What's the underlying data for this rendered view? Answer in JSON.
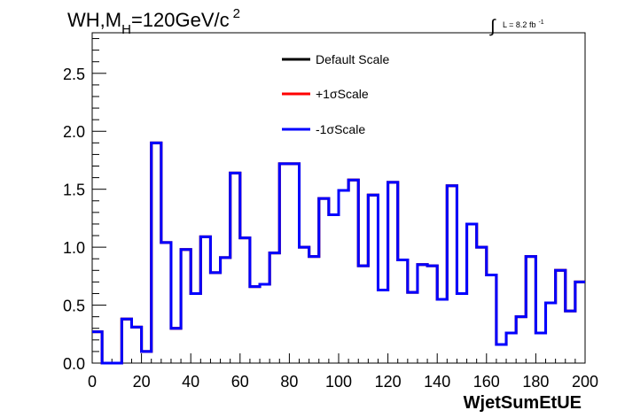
{
  "chart_data": {
    "type": "line",
    "title_main": "WH,M",
    "title_sub": "H",
    "title_rest": "=120GeV/c",
    "title_sup": "2",
    "lumi_prefix": "L = 8.2 fb",
    "lumi_sup": "-1",
    "xlabel": "WjetSumEtUE",
    "ylabel": "",
    "xlim": [
      0,
      200
    ],
    "ylim": [
      0,
      2.85
    ],
    "x_ticks": [
      0,
      20,
      40,
      60,
      80,
      100,
      120,
      140,
      160,
      180,
      200
    ],
    "x_tick_labels": [
      "0",
      "20",
      "40",
      "60",
      "80",
      "100",
      "120",
      "140",
      "160",
      "180",
      "200"
    ],
    "y_ticks": [
      0,
      0.5,
      1.0,
      1.5,
      2.0,
      2.5
    ],
    "y_tick_labels": [
      "0.0",
      "0.5",
      "1.0",
      "1.5",
      "2.0",
      "2.5"
    ],
    "grid": false,
    "legend_position": "top-center",
    "bin_edges": [
      0,
      4,
      8,
      12,
      16,
      20,
      24,
      28,
      32,
      36,
      40,
      44,
      48,
      52,
      56,
      60,
      64,
      68,
      72,
      76,
      80,
      84,
      88,
      92,
      96,
      100,
      104,
      108,
      112,
      116,
      120,
      124,
      128,
      132,
      136,
      140,
      144,
      148,
      152,
      156,
      160,
      164,
      168,
      172,
      176,
      180,
      184,
      188,
      192,
      196,
      200
    ],
    "series": [
      {
        "name": "Default Scale",
        "color": "#000000",
        "values": [
          0.27,
          0.0,
          0.0,
          0.38,
          0.31,
          0.1,
          1.9,
          1.04,
          0.3,
          0.98,
          0.6,
          1.09,
          0.78,
          0.91,
          1.64,
          1.08,
          0.66,
          0.68,
          0.95,
          1.72,
          1.72,
          1.0,
          0.92,
          1.42,
          1.28,
          1.49,
          1.58,
          0.84,
          1.45,
          0.63,
          1.56,
          0.89,
          0.61,
          0.85,
          0.84,
          0.55,
          1.53,
          0.6,
          1.2,
          1.0,
          0.76,
          0.16,
          0.26,
          0.4,
          0.92,
          0.26,
          0.52,
          0.8,
          0.45,
          0.7
        ]
      },
      {
        "name": "+1σScale",
        "color": "#ff0000",
        "values": [
          0.27,
          0.0,
          0.0,
          0.38,
          0.31,
          0.1,
          1.9,
          1.04,
          0.3,
          0.98,
          0.6,
          1.09,
          0.78,
          0.91,
          1.64,
          1.08,
          0.66,
          0.68,
          0.95,
          1.72,
          1.72,
          1.0,
          0.92,
          1.42,
          1.28,
          1.49,
          1.58,
          0.84,
          1.45,
          0.63,
          1.56,
          0.89,
          0.61,
          0.85,
          0.84,
          0.55,
          1.53,
          0.6,
          1.2,
          1.0,
          0.76,
          0.16,
          0.26,
          0.4,
          0.92,
          0.26,
          0.52,
          0.8,
          0.45,
          0.7
        ]
      },
      {
        "name": "-1σScale",
        "color": "#0000ff",
        "values": [
          0.27,
          0.0,
          0.0,
          0.38,
          0.31,
          0.1,
          1.9,
          1.04,
          0.3,
          0.98,
          0.6,
          1.09,
          0.78,
          0.91,
          1.64,
          1.08,
          0.66,
          0.68,
          0.95,
          1.72,
          1.72,
          1.0,
          0.92,
          1.42,
          1.28,
          1.49,
          1.58,
          0.84,
          1.45,
          0.63,
          1.56,
          0.89,
          0.61,
          0.85,
          0.84,
          0.55,
          1.53,
          0.6,
          1.2,
          1.0,
          0.76,
          0.16,
          0.26,
          0.4,
          0.92,
          0.26,
          0.52,
          0.8,
          0.45,
          0.7
        ]
      }
    ]
  }
}
